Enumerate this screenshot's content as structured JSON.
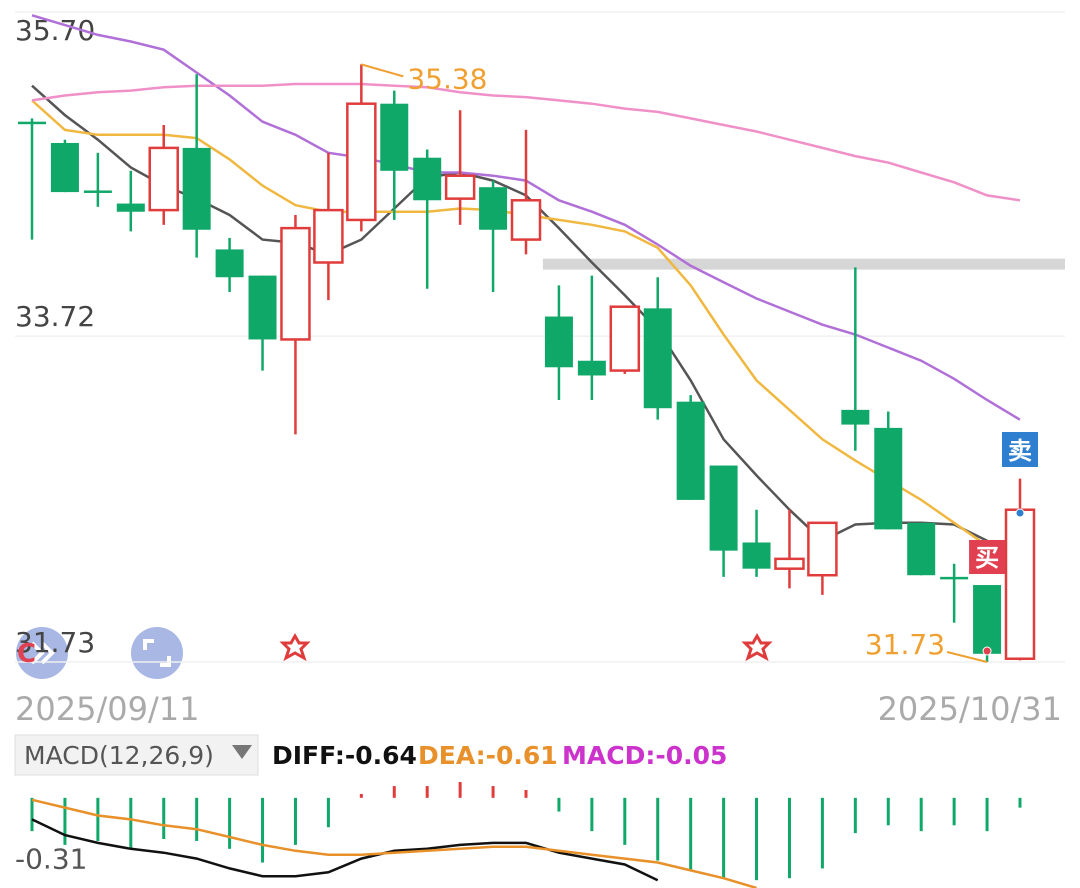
{
  "chart_data": [
    {
      "type": "candlestick",
      "categories": [
        "2025/09/11",
        null,
        null,
        null,
        null,
        null,
        null,
        null,
        null,
        null,
        null,
        null,
        null,
        null,
        null,
        null,
        null,
        null,
        null,
        null,
        null,
        null,
        null,
        null,
        null,
        null,
        null,
        null,
        null,
        null,
        "2025/10/31"
      ],
      "open": [
        35.03,
        34.9,
        34.61,
        34.53,
        34.49,
        34.87,
        34.25,
        34.09,
        33.7,
        34.17,
        34.43,
        35.14,
        34.81,
        34.56,
        34.63,
        34.31,
        33.84,
        33.57,
        33.51,
        33.89,
        33.32,
        32.93,
        32.46,
        32.3,
        32.26,
        33.27,
        33.16,
        32.58,
        32.25,
        32.2,
        31.75
      ],
      "high": [
        35.05,
        34.92,
        34.84,
        34.73,
        35.01,
        35.32,
        34.32,
        34.09,
        34.46,
        34.84,
        35.38,
        35.22,
        34.86,
        35.1,
        34.67,
        34.98,
        34.03,
        34.09,
        33.9,
        34.08,
        33.36,
        32.93,
        32.66,
        32.66,
        32.58,
        34.14,
        33.26,
        32.58,
        32.33,
        32.2,
        32.85
      ],
      "low": [
        34.31,
        34.6,
        34.51,
        34.36,
        34.4,
        34.2,
        33.99,
        33.51,
        33.12,
        33.94,
        34.36,
        34.43,
        34.01,
        34.4,
        33.99,
        34.22,
        33.33,
        33.33,
        33.49,
        33.21,
        32.72,
        32.25,
        32.25,
        32.18,
        32.14,
        33.02,
        32.54,
        32.26,
        31.97,
        31.73,
        31.74
      ],
      "close": [
        35.03,
        34.6,
        34.61,
        34.48,
        34.87,
        34.37,
        34.08,
        33.7,
        34.38,
        34.49,
        35.14,
        34.73,
        34.55,
        34.7,
        34.37,
        34.55,
        33.53,
        33.48,
        33.9,
        33.28,
        32.72,
        32.41,
        32.3,
        32.36,
        32.58,
        33.18,
        32.54,
        32.26,
        32.25,
        31.78,
        32.66
      ],
      "up_color": "#e03c3c",
      "down_color": "#10a868",
      "series": [
        {
          "color": "#555555",
          "values": [
            35.25,
            35.07,
            34.92,
            34.75,
            34.64,
            34.56,
            34.46,
            34.31,
            34.29,
            34.22,
            34.31,
            34.5,
            34.69,
            34.72,
            34.67,
            34.58,
            34.38,
            34.17,
            33.97,
            33.76,
            33.45,
            33.09,
            32.87,
            32.66,
            32.47,
            32.57,
            32.58,
            32.58,
            32.57,
            32.47,
            32.29
          ]
        },
        {
          "color": "#f0b840",
          "values": [
            35.16,
            34.98,
            34.95,
            34.95,
            34.95,
            34.93,
            34.8,
            34.64,
            34.52,
            34.48,
            34.48,
            34.48,
            34.48,
            34.5,
            34.49,
            34.46,
            34.43,
            34.4,
            34.36,
            34.26,
            34.03,
            33.73,
            33.45,
            33.27,
            33.09,
            32.96,
            32.84,
            32.72,
            32.58,
            32.44,
            32.43
          ]
        },
        {
          "color": "#b070d8",
          "values": [
            35.68,
            35.62,
            35.56,
            35.52,
            35.47,
            35.33,
            35.19,
            35.03,
            34.95,
            34.84,
            34.81,
            34.77,
            34.72,
            34.72,
            34.7,
            34.67,
            34.55,
            34.48,
            34.4,
            34.28,
            34.15,
            34.05,
            33.95,
            33.87,
            33.79,
            33.73,
            33.65,
            33.57,
            33.46,
            33.33,
            33.21
          ]
        },
        {
          "color": "#f090c8",
          "values": [
            35.16,
            35.19,
            35.21,
            35.22,
            35.24,
            35.25,
            35.25,
            35.25,
            35.26,
            35.26,
            35.26,
            35.25,
            35.24,
            35.21,
            35.19,
            35.18,
            35.16,
            35.14,
            35.11,
            35.09,
            35.05,
            35.01,
            34.97,
            34.92,
            34.87,
            34.82,
            34.78,
            34.72,
            34.66,
            34.58,
            34.55
          ]
        }
      ],
      "resistance": 34.16,
      "ylim": [
        31.73,
        35.7
      ],
      "yticks": [
        {
          "value": 35.7,
          "label": "35.70"
        },
        33.72,
        31.73
      ],
      "grid": true,
      "max_label": 35.38,
      "min_label": 31.73,
      "sell_signal": "卖",
      "buy_signal": "买",
      "badge": "C"
    },
    {
      "type": "macd",
      "indicator_label": "MACD(12,26,9)",
      "readouts": [
        {
          "text": "DIFF:-0.64",
          "color": "#111111"
        },
        {
          "text": "DEA:-0.61",
          "color": "#e8902a"
        },
        {
          "text": "MACD:-0.05",
          "color": "#cc33cc"
        }
      ],
      "histogram": [
        -0.17,
        -0.24,
        -0.22,
        -0.26,
        -0.21,
        -0.22,
        -0.26,
        -0.33,
        -0.24,
        -0.15,
        0.02,
        0.06,
        0.06,
        0.1,
        0.06,
        0.04,
        -0.07,
        -0.17,
        -0.24,
        -0.32,
        -0.37,
        -0.41,
        -0.42,
        -0.41,
        -0.36,
        -0.18,
        -0.14,
        -0.17,
        -0.14,
        -0.17,
        -0.05
      ],
      "up_color": "#e03c3c",
      "down_color": "#10a868",
      "series": [
        {
          "color": "#111111",
          "values": [
            -0.11,
            -0.19,
            -0.23,
            -0.26,
            -0.28,
            -0.31,
            -0.36,
            -0.4,
            -0.4,
            -0.38,
            -0.31,
            -0.27,
            -0.26,
            -0.24,
            -0.23,
            -0.23,
            -0.28,
            -0.31,
            -0.34,
            -0.42,
            null,
            null,
            null,
            null,
            null,
            null,
            null,
            null,
            null,
            null,
            null
          ]
        },
        {
          "color": "#e8902a",
          "values": [
            -0.01,
            -0.05,
            -0.09,
            -0.11,
            -0.14,
            -0.16,
            -0.2,
            -0.24,
            -0.27,
            -0.29,
            -0.29,
            -0.28,
            -0.27,
            -0.26,
            -0.25,
            -0.25,
            -0.27,
            -0.29,
            -0.31,
            -0.33,
            -0.37,
            -0.41,
            -0.46,
            null,
            null,
            null,
            null,
            null,
            null,
            null,
            null
          ]
        }
      ],
      "ylim": [
        -0.46,
        0.04
      ],
      "yticks": [
        -0.31
      ]
    }
  ]
}
